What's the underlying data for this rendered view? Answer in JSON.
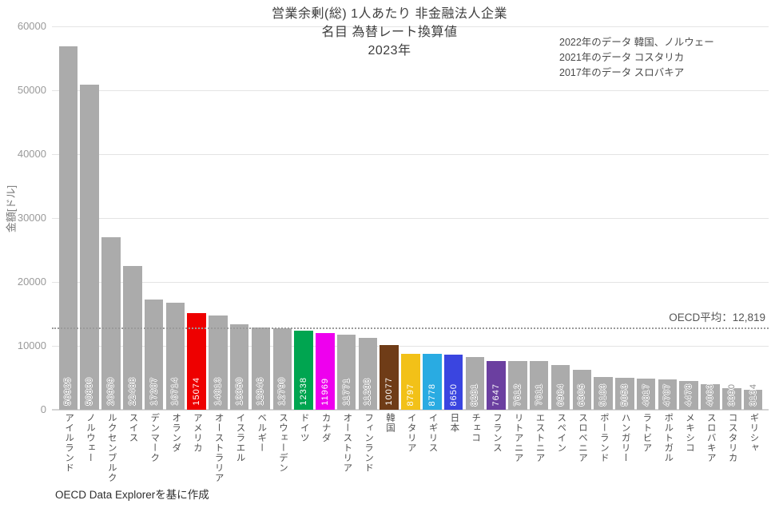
{
  "title": {
    "line1": "営業余剰(総) 1人あたり 非金融法人企業",
    "line2": "名目 為替レート換算値",
    "line3": "2023年"
  },
  "annotation": {
    "lines": [
      "2022年のデータ 韓国、ノルウェー",
      "2021年のデータ コスタリカ",
      "2017年のデータ スロバキア"
    ]
  },
  "footer": {
    "source": "OECD Data Explorerを基に作成"
  },
  "chart_data": {
    "type": "bar",
    "title": "営業余剰(総) 1人あたり 非金融法人企業 名目 為替レート換算値 2023年",
    "xlabel": "",
    "ylabel": "金額[ドル]",
    "ylim": [
      0,
      60000
    ],
    "yticks": [
      0,
      10000,
      20000,
      30000,
      40000,
      50000,
      60000
    ],
    "grid": true,
    "legend": "none",
    "average_line": {
      "label": "OECD平均：12,819",
      "value": 12819
    },
    "default_bar_color": "#ababab",
    "value_label_color_on_gray": "#8e8e8e",
    "value_label_color_on_colored": "#ffffff",
    "categories": [
      "アイルランド",
      "ノルウェー",
      "ルクセンブルク",
      "スイス",
      "デンマーク",
      "オランダ",
      "アメリカ",
      "オーストラリア",
      "イスラエル",
      "ベルギー",
      "スウェーデン",
      "ドイツ",
      "カナダ",
      "オーストリア",
      "フィンランド",
      "韓国",
      "イタリア",
      "イギリス",
      "日本",
      "チェコ",
      "フランス",
      "リトアニア",
      "エストニア",
      "スペイン",
      "スロベニア",
      "ポーランド",
      "ハンガリー",
      "ラトビア",
      "ポルトガル",
      "メキシコ",
      "スロバキア",
      "コスタリカ",
      "ギリシャ"
    ],
    "values": [
      56925,
      50830,
      26959,
      22488,
      17287,
      16714,
      15074,
      14813,
      13350,
      12846,
      12790,
      12338,
      11969,
      11771,
      11293,
      10077,
      8797,
      8778,
      8650,
      8281,
      7647,
      7612,
      7611,
      6984,
      6305,
      5183,
      5053,
      4817,
      4787,
      4478,
      4063,
      3390,
      3134
    ],
    "bar_colors": {
      "6": "#ee0000",
      "11": "#00a550",
      "12": "#ee00ee",
      "15": "#6f3c17",
      "16": "#f2c118",
      "17": "#29abe2",
      "18": "#3a45e0",
      "20": "#6b3fa0"
    }
  }
}
